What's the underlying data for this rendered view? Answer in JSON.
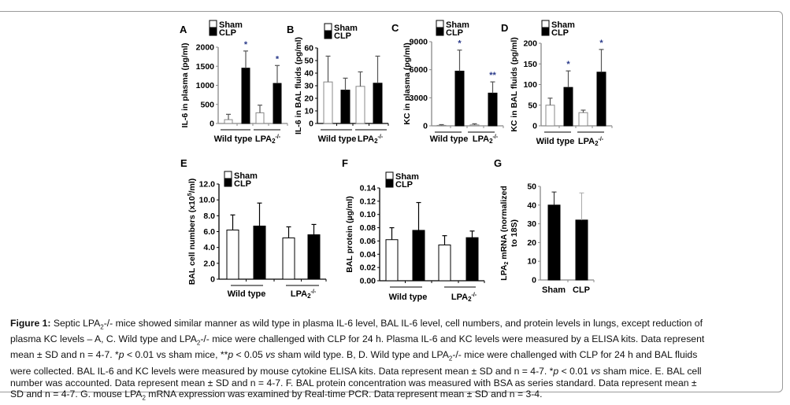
{
  "caption": {
    "label": "Figure 1:",
    "line1_a": " Septic LPA",
    "line1_sub": "2",
    "line1_b": "-/- mice showed similar manner as wild type in plasma IL-6 level, BAL IL-6 level, cell numbers, and protein levels in lungs, except reduction of",
    "line2_a": "plasma KC levels – A, C. Wild type and LPA",
    "line2_sub": "2",
    "line2_b": "-/- mice were challenged with CLP for 24 h. Plasma IL-6 and KC levels were measured by a ELISA kits. Data represent",
    "line3_a": "mean ± SD and n = 4-7. *",
    "line3_p1": "p",
    "line3_b": " < 0.01 vs sham mice, **",
    "line3_p2": "p",
    "line3_c": " < 0.05 ",
    "line3_vs": "vs",
    "line3_d": " sham wild type. B, D. Wild type and LPA",
    "line3_sub": "2",
    "line3_e": "-/- mice were challenged with CLP for 24 h and BAL fluids",
    "line4_a": "were collected. BAL IL-6 and KC levels were measured by mouse cytokine ELISA kits. Data represent mean ± SD and n = 4-7. *",
    "line4_p": "p",
    "line4_b": " < 0.01 ",
    "line4_vs": "vs",
    "line4_c": " sham mice. E. BAL cell",
    "line5": "number was accounted. Data represent mean ± SD and n = 4-7. F. BAL protein concentration was measured with BSA as series standard. Data represent mean ±",
    "line6_a": "SD and n = 4-7. G. mouse LPA",
    "line6_sub": "2",
    "line6_b": " mRNA expression was examined by Real-time PCR. Data represent mean ± SD and n = 3-4."
  },
  "colors": {
    "sham_fill": "#ffffff",
    "clp_fill": "#000000",
    "axis": "#555555",
    "err": "#555555",
    "star": "#2a3a8a"
  },
  "chart_data": [
    {
      "panel": "A",
      "type": "bar",
      "ylabel": "IL-6 in plasma (pg/ml)",
      "ylim": [
        0,
        2000
      ],
      "yticks": [
        "0",
        "500",
        "1000",
        "1500",
        "2000"
      ],
      "ytick_values": [
        0,
        500,
        1000,
        1500,
        2000
      ],
      "categories": [
        "Wild type",
        "LPA2-/-"
      ],
      "category_labels": [
        "Wild type",
        "LPA",
        "2",
        "-/-"
      ],
      "legend": [
        "Sham",
        "CLP"
      ],
      "legend_placement": "top-left",
      "series": [
        {
          "name": "Sham",
          "values": [
            100,
            280
          ],
          "errors": [
            140,
            200
          ]
        },
        {
          "name": "CLP",
          "values": [
            1450,
            1050
          ],
          "errors": [
            450,
            470
          ]
        }
      ],
      "annotations": [
        {
          "text": "*",
          "category": "Wild type",
          "series": "CLP"
        },
        {
          "text": "*",
          "category": "LPA2-/-",
          "series": "CLP"
        }
      ]
    },
    {
      "panel": "B",
      "type": "bar",
      "ylabel": "IL-6 in BAL fluids (pg/ml)",
      "ylim": [
        0,
        60
      ],
      "yticks": [
        "0",
        "10",
        "20",
        "30",
        "40",
        "50",
        "60"
      ],
      "ytick_values": [
        0,
        10,
        20,
        30,
        40,
        50,
        60
      ],
      "categories": [
        "Wild type",
        "LPA2-/-"
      ],
      "legend": [
        "Sham",
        "CLP"
      ],
      "legend_placement": "top-left",
      "series": [
        {
          "name": "Sham",
          "values": [
            33,
            29.5
          ],
          "errors": [
            20.5,
            11.5
          ]
        },
        {
          "name": "CLP",
          "values": [
            26.5,
            32
          ],
          "errors": [
            9.5,
            21.5
          ]
        }
      ],
      "annotations": []
    },
    {
      "panel": "C",
      "type": "bar",
      "ylabel": "KC in plasma (pg/ml)",
      "ylim": [
        0,
        9000
      ],
      "yticks": [
        "0",
        "3000",
        "6000",
        "9000"
      ],
      "ytick_values": [
        0,
        3000,
        6000,
        9000
      ],
      "categories": [
        "Wild type",
        "LPA2-/-"
      ],
      "legend": [
        "Sham",
        "CLP"
      ],
      "legend_placement": "top-left",
      "series": [
        {
          "name": "Sham",
          "values": [
            50,
            100
          ],
          "errors": [
            80,
            120
          ]
        },
        {
          "name": "CLP",
          "values": [
            5850,
            3500
          ],
          "errors": [
            2250,
            1200
          ]
        }
      ],
      "annotations": [
        {
          "text": "*",
          "category": "Wild type",
          "series": "CLP"
        },
        {
          "text": "**",
          "category": "LPA2-/-",
          "series": "CLP"
        }
      ]
    },
    {
      "panel": "D",
      "type": "bar",
      "ylabel": "KC in BAL fluids (pg/ml)",
      "ylim": [
        0,
        200
      ],
      "yticks": [
        "0",
        "50",
        "100",
        "150",
        "200"
      ],
      "ytick_values": [
        0,
        50,
        100,
        150,
        200
      ],
      "categories": [
        "Wild type",
        "LPA2-/-"
      ],
      "legend": [
        "Sham",
        "CLP"
      ],
      "legend_placement": "top-left",
      "series": [
        {
          "name": "Sham",
          "values": [
            50,
            32
          ],
          "errors": [
            17,
            6
          ]
        },
        {
          "name": "CLP",
          "values": [
            93,
            130
          ],
          "errors": [
            40,
            55
          ]
        }
      ],
      "annotations": [
        {
          "text": "*",
          "category": "Wild type",
          "series": "CLP"
        },
        {
          "text": "*",
          "category": "LPA2-/-",
          "series": "CLP"
        }
      ]
    },
    {
      "panel": "E",
      "type": "bar",
      "ylabel": "BAL cell numbers (x10",
      "ylabel_sup": "5",
      "ylabel_end": "/ml)",
      "ylim": [
        0,
        12
      ],
      "yticks": [
        "0",
        "2.0",
        "4.0",
        "6.0",
        "8.0",
        "10.0",
        "12.0"
      ],
      "ytick_values": [
        0,
        2,
        4,
        6,
        8,
        10,
        12
      ],
      "categories": [
        "Wild type",
        "LPA2-/-"
      ],
      "legend": [
        "Sham",
        "CLP"
      ],
      "legend_placement": "top-left",
      "series": [
        {
          "name": "Sham",
          "values": [
            6.2,
            5.2
          ],
          "errors": [
            1.9,
            1.4
          ]
        },
        {
          "name": "CLP",
          "values": [
            6.7,
            5.6
          ],
          "errors": [
            2.9,
            1.3
          ]
        }
      ],
      "annotations": []
    },
    {
      "panel": "F",
      "type": "bar",
      "ylabel": "BAL protein (µg/ml)",
      "ylim": [
        0,
        0.14
      ],
      "yticks": [
        "0.00",
        "0.02",
        "0.04",
        "0.06",
        "0.08",
        "0.10",
        "0.12",
        "0.14"
      ],
      "ytick_values": [
        0,
        0.02,
        0.04,
        0.06,
        0.08,
        0.1,
        0.12,
        0.14
      ],
      "categories": [
        "Wild type",
        "LPA2-/-"
      ],
      "legend": [
        "Sham",
        "CLP"
      ],
      "legend_placement": "top-left",
      "series": [
        {
          "name": "Sham",
          "values": [
            0.062,
            0.054
          ],
          "errors": [
            0.018,
            0.014
          ]
        },
        {
          "name": "CLP",
          "values": [
            0.076,
            0.065
          ],
          "errors": [
            0.042,
            0.01
          ]
        }
      ],
      "annotations": []
    },
    {
      "panel": "G",
      "type": "bar",
      "ylabel": "LPA",
      "ylabel_sub": "2",
      "ylabel_end": " mRNA (normalized",
      "ylabel_line2": "to 18S)",
      "ylim": [
        0,
        50
      ],
      "yticks": [
        "0",
        "10",
        "20",
        "30",
        "40",
        "50"
      ],
      "ytick_values": [
        0,
        10,
        20,
        30,
        40,
        50
      ],
      "categories": [
        "Sham",
        "CLP"
      ],
      "series": [
        {
          "name": "LPA2 mRNA",
          "values": [
            40,
            32
          ],
          "errors": [
            7,
            14.5
          ]
        }
      ],
      "annotations": []
    }
  ]
}
